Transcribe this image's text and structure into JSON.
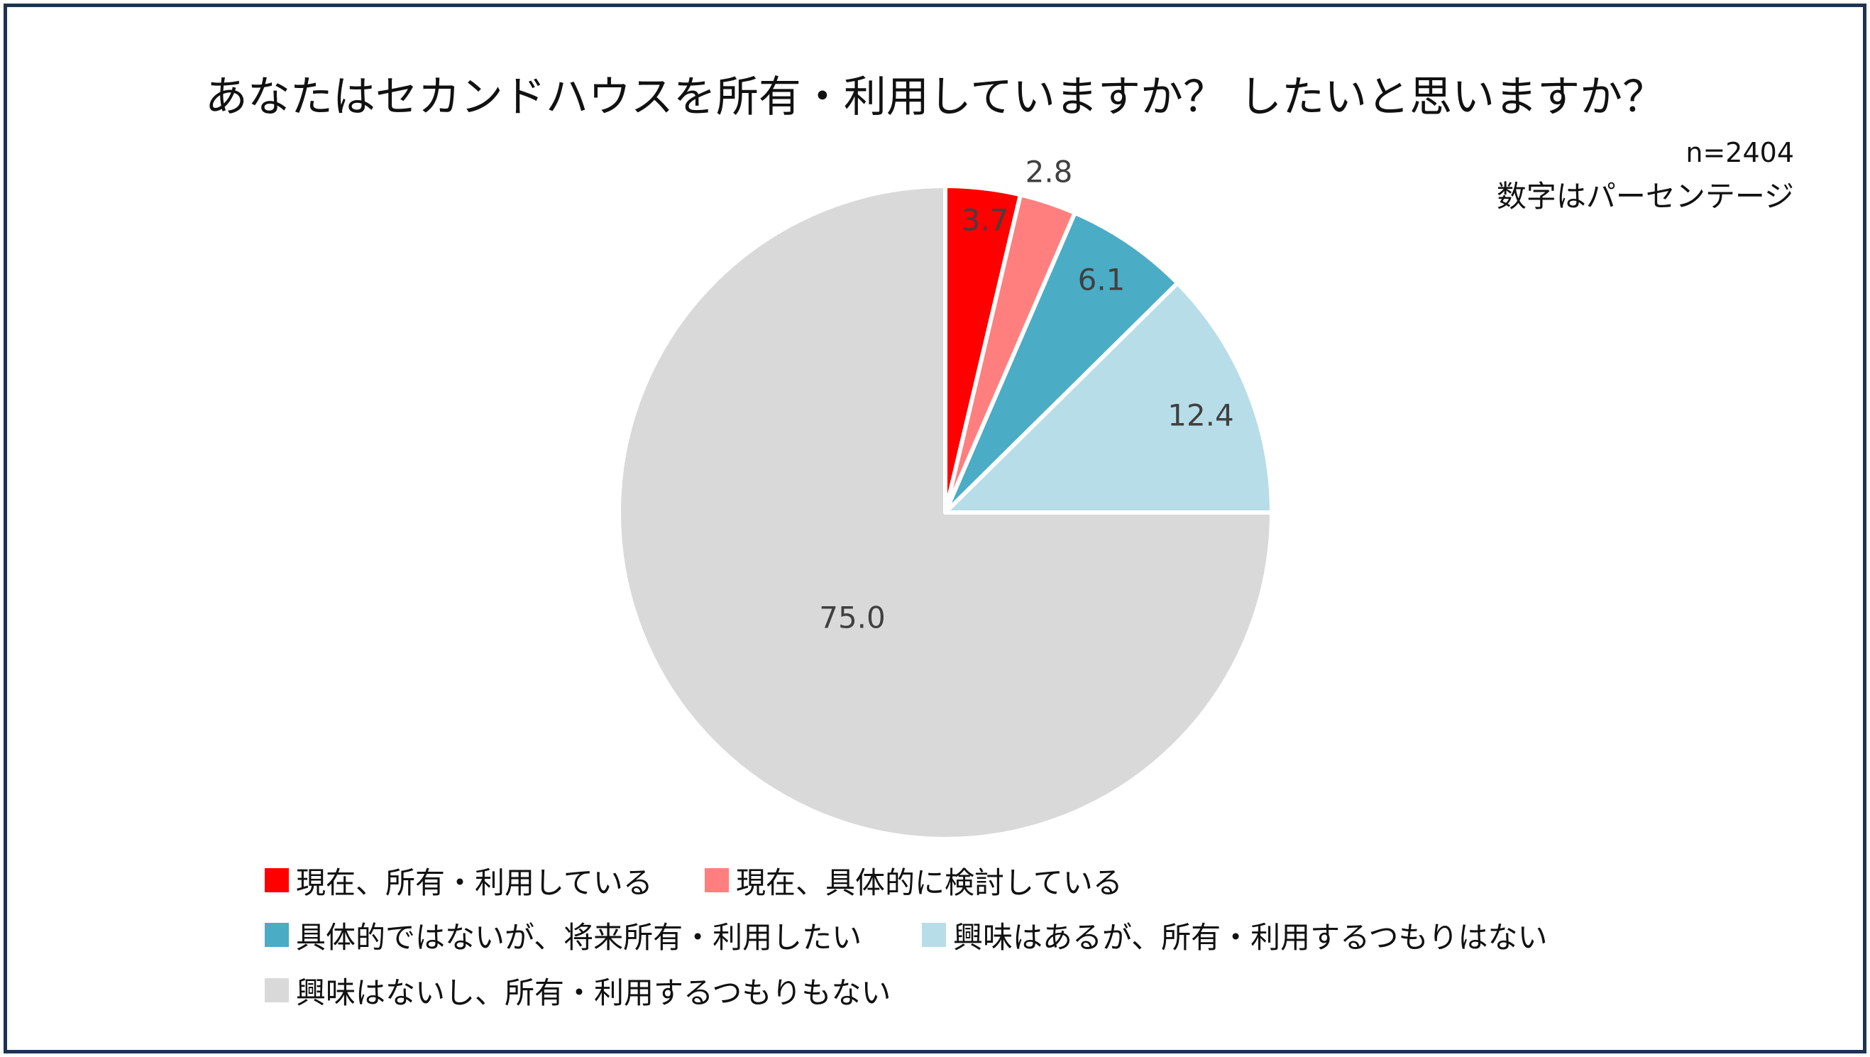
{
  "chart_data": {
    "type": "pie",
    "title": "あなたはセカンドハウスを所有・利用していますか？ したいと思いますか？",
    "sample_size_label": "n=2404",
    "unit_label": "数字はパーセンテージ",
    "slices": [
      {
        "label": "現在、所有・利用している",
        "value": 3.7,
        "value_label": "3.7",
        "color": "#ff0000"
      },
      {
        "label": "現在、具体的に検討している",
        "value": 2.8,
        "value_label": "2.8",
        "color": "#ff7f7f"
      },
      {
        "label": "具体的ではないが、将来所有・利用したい",
        "value": 6.1,
        "value_label": "6.1",
        "color": "#4bacc6"
      },
      {
        "label": "興味はあるが、所有・利用するつもりはない",
        "value": 12.4,
        "value_label": "12.4",
        "color": "#b7dde8"
      },
      {
        "label": "興味はないし、所有・利用するつもりもない",
        "value": 75.0,
        "value_label": "75.0",
        "color": "#d9d9d9"
      }
    ],
    "start_angle": "12 o'clock",
    "direction": "clockwise",
    "legend_position": "bottom"
  },
  "colors": {
    "frame_border": "#1f3350",
    "label_text": "#404040",
    "slice_separator": "#ffffff"
  }
}
